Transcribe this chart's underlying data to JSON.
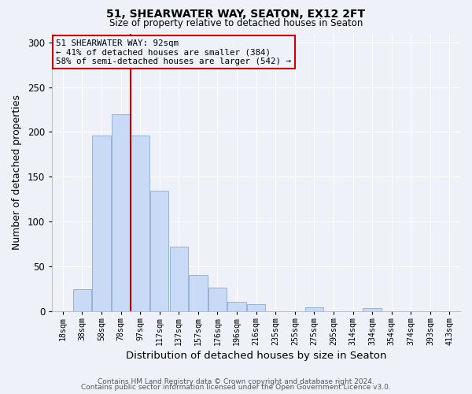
{
  "title": "51, SHEARWATER WAY, SEATON, EX12 2FT",
  "subtitle": "Size of property relative to detached houses in Seaton",
  "xlabel": "Distribution of detached houses by size in Seaton",
  "ylabel": "Number of detached properties",
  "bar_color": "#c8daf5",
  "bar_edgecolor": "#8aaad0",
  "bin_labels": [
    "18sqm",
    "38sqm",
    "58sqm",
    "78sqm",
    "97sqm",
    "117sqm",
    "137sqm",
    "157sqm",
    "176sqm",
    "196sqm",
    "216sqm",
    "235sqm",
    "255sqm",
    "275sqm",
    "295sqm",
    "314sqm",
    "334sqm",
    "354sqm",
    "374sqm",
    "393sqm",
    "413sqm"
  ],
  "bin_values": [
    0,
    24,
    196,
    220,
    196,
    134,
    72,
    40,
    26,
    10,
    8,
    0,
    0,
    4,
    0,
    0,
    3,
    0,
    0,
    0,
    0
  ],
  "vline_bin_index": 4,
  "vline_color": "#cc0000",
  "annotation_text": "51 SHEARWATER WAY: 92sqm\n← 41% of detached houses are smaller (384)\n58% of semi-detached houses are larger (542) →",
  "annotation_box_edgecolor": "#cc0000",
  "ylim": [
    0,
    310
  ],
  "yticks": [
    0,
    50,
    100,
    150,
    200,
    250,
    300
  ],
  "footer_line1": "Contains HM Land Registry data © Crown copyright and database right 2024.",
  "footer_line2": "Contains public sector information licensed under the Open Government Licence v3.0.",
  "background_color": "#eef1f8",
  "grid_color": "#ffffff",
  "num_bins": 21
}
